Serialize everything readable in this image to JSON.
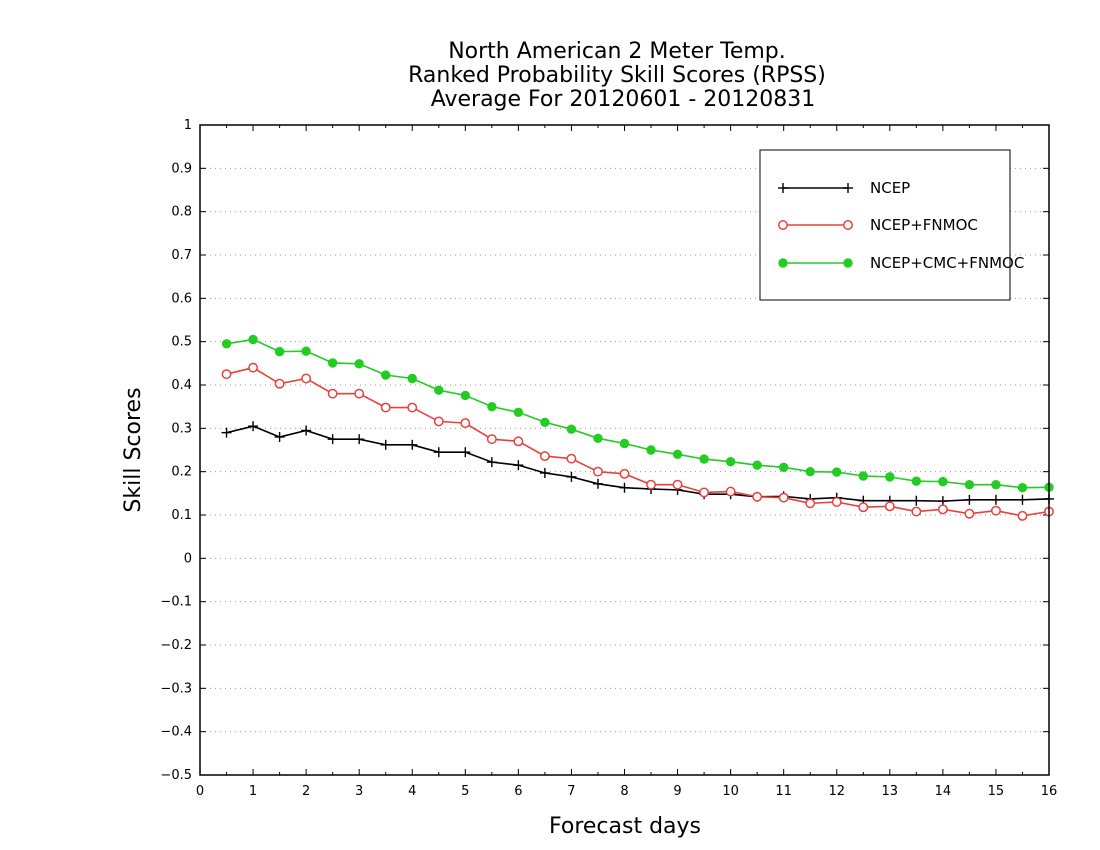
{
  "chart_data": {
    "type": "line",
    "title_lines": [
      "North American 2 Meter Temp.",
      "Ranked Probability Skill Scores (RPSS)",
      "Average For 20120601 - 20120831"
    ],
    "xlabel": "Forecast days",
    "ylabel": "Skill Scores",
    "xlim": [
      0,
      16
    ],
    "ylim": [
      -0.5,
      1
    ],
    "x_ticks": [
      0,
      1,
      2,
      3,
      4,
      5,
      6,
      7,
      8,
      9,
      10,
      11,
      12,
      13,
      14,
      15,
      16
    ],
    "y_ticks": [
      -0.5,
      -0.4,
      -0.3,
      -0.2,
      -0.1,
      0,
      0.1,
      0.2,
      0.3,
      0.4,
      0.5,
      0.6,
      0.7,
      0.8,
      0.9,
      1
    ],
    "y_tick_labels": [
      "−0.5",
      "−0.4",
      "−0.3",
      "−0.2",
      "−0.1",
      "0",
      "0.1",
      "0.2",
      "0.3",
      "0.4",
      "0.5",
      "0.6",
      "0.7",
      "0.8",
      "0.9",
      "1"
    ],
    "grid": "horizontal dotted",
    "legend_position": "top-right",
    "x": [
      0.5,
      1,
      1.5,
      2,
      2.5,
      3,
      3.5,
      4,
      4.5,
      5,
      5.5,
      6,
      6.5,
      7,
      7.5,
      8,
      8.5,
      9,
      9.5,
      10,
      10.5,
      11,
      11.5,
      12,
      12.5,
      13,
      13.5,
      14,
      14.5,
      15,
      15.5,
      16
    ],
    "series": [
      {
        "name": "NCEP",
        "color": "#000000",
        "marker": "plus",
        "values": [
          0.29,
          0.305,
          0.28,
          0.295,
          0.275,
          0.275,
          0.262,
          0.262,
          0.245,
          0.245,
          0.222,
          0.215,
          0.197,
          0.188,
          0.172,
          0.163,
          0.16,
          0.158,
          0.148,
          0.148,
          0.142,
          0.143,
          0.137,
          0.14,
          0.133,
          0.133,
          0.133,
          0.132,
          0.135,
          0.135,
          0.135,
          0.137
        ]
      },
      {
        "name": "NCEP+FNMOC",
        "color": "#e8413c",
        "marker": "open-circle",
        "values": [
          0.425,
          0.44,
          0.403,
          0.415,
          0.38,
          0.38,
          0.348,
          0.348,
          0.316,
          0.312,
          0.275,
          0.27,
          0.236,
          0.23,
          0.2,
          0.195,
          0.17,
          0.17,
          0.152,
          0.154,
          0.142,
          0.14,
          0.127,
          0.13,
          0.118,
          0.12,
          0.108,
          0.113,
          0.103,
          0.11,
          0.098,
          0.108
        ]
      },
      {
        "name": "NCEP+CMC+FNMOC",
        "color": "#22cc22",
        "marker": "filled-circle",
        "values": [
          0.495,
          0.505,
          0.477,
          0.478,
          0.451,
          0.449,
          0.423,
          0.415,
          0.388,
          0.376,
          0.35,
          0.337,
          0.314,
          0.298,
          0.277,
          0.265,
          0.25,
          0.24,
          0.229,
          0.223,
          0.215,
          0.21,
          0.2,
          0.199,
          0.19,
          0.188,
          0.178,
          0.177,
          0.17,
          0.17,
          0.163,
          0.164
        ]
      }
    ]
  }
}
